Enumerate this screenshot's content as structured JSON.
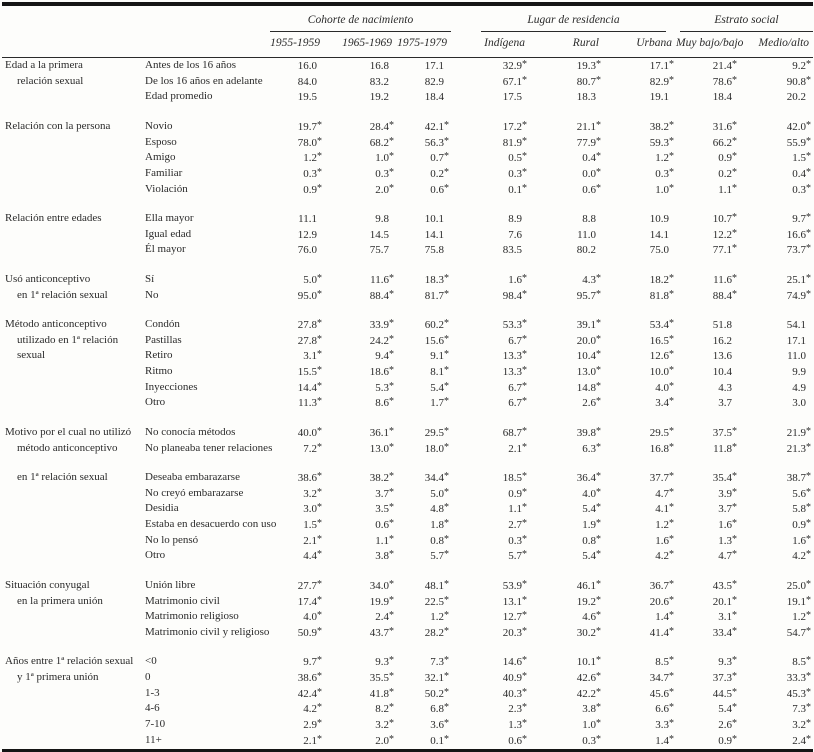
{
  "table": {
    "column_groups": [
      {
        "label": "Cohorte de nacimiento",
        "columns": [
          "1955-1959",
          "1965-1969",
          "1975-1979"
        ]
      },
      {
        "label": "Lugar de residencia",
        "columns": [
          "Indígena",
          "Rural",
          "Urbana"
        ]
      },
      {
        "label": "Estrato social",
        "columns": [
          "Muy bajo/bajo",
          "Medio/alto"
        ]
      }
    ],
    "footnote_marker": "*",
    "sections": [
      {
        "label_lines": [
          "Edad a la primera",
          "relación sexual"
        ],
        "rows": [
          {
            "label": "Antes de los 16 años",
            "values": [
              "16.0",
              "16.8",
              "17.1",
              "32.9*",
              "19.3*",
              "17.1*",
              "21.4*",
              "9.2*"
            ]
          },
          {
            "label": "De los 16 años en adelante",
            "values": [
              "84.0",
              "83.2",
              "82.9",
              "67.1*",
              "80.7*",
              "82.9*",
              "78.6*",
              "90.8*"
            ]
          },
          {
            "label": "Edad promedio",
            "values": [
              "19.5",
              "19.2",
              "18.4",
              "17.5",
              "18.3",
              "19.1",
              "18.4",
              "20.2"
            ]
          }
        ]
      },
      {
        "label_lines": [
          "Relación con la persona"
        ],
        "rows": [
          {
            "label": "Novio",
            "values": [
              "19.7*",
              "28.4*",
              "42.1*",
              "17.2*",
              "21.1*",
              "38.2*",
              "31.6*",
              "42.0*"
            ]
          },
          {
            "label": "Esposo",
            "values": [
              "78.0*",
              "68.2*",
              "56.3*",
              "81.9*",
              "77.9*",
              "59.3*",
              "66.2*",
              "55.9*"
            ]
          },
          {
            "label": "Amigo",
            "values": [
              "1.2*",
              "1.0*",
              "0.7*",
              "0.5*",
              "0.4*",
              "1.2*",
              "0.9*",
              "1.5*"
            ]
          },
          {
            "label": "Familiar",
            "values": [
              "0.3*",
              "0.3*",
              "0.2*",
              "0.3*",
              "0.0*",
              "0.3*",
              "0.2*",
              "0.4*"
            ]
          },
          {
            "label": "Violación",
            "values": [
              "0.9*",
              "2.0*",
              "0.6*",
              "0.1*",
              "0.6*",
              "1.0*",
              "1.1*",
              "0.3*"
            ]
          }
        ]
      },
      {
        "label_lines": [
          "Relación entre edades"
        ],
        "rows": [
          {
            "label": "Ella mayor",
            "values": [
              "11.1",
              "9.8",
              "10.1",
              "8.9",
              "8.8",
              "10.9",
              "10.7*",
              "9.7*"
            ]
          },
          {
            "label": "Igual edad",
            "values": [
              "12.9",
              "14.5",
              "14.1",
              "7.6",
              "11.0",
              "14.1",
              "12.2*",
              "16.6*"
            ]
          },
          {
            "label": "Él mayor",
            "values": [
              "76.0",
              "75.7",
              "75.8",
              "83.5",
              "80.2",
              "75.0",
              "77.1*",
              "73.7*"
            ]
          }
        ]
      },
      {
        "label_lines": [
          "Usó anticonceptivo",
          "en 1ª relación sexual"
        ],
        "rows": [
          {
            "label": "Sí",
            "values": [
              "5.0*",
              "11.6*",
              "18.3*",
              "1.6*",
              "4.3*",
              "18.2*",
              "11.6*",
              "25.1*"
            ]
          },
          {
            "label": "No",
            "values": [
              "95.0*",
              "88.4*",
              "81.7*",
              "98.4*",
              "95.7*",
              "81.8*",
              "88.4*",
              "74.9*"
            ]
          }
        ]
      },
      {
        "label_lines": [
          "Método anticonceptivo",
          "utilizado en 1ª relación",
          "sexual"
        ],
        "rows": [
          {
            "label": "Condón",
            "values": [
              "27.8*",
              "33.9*",
              "60.2*",
              "53.3*",
              "39.1*",
              "53.4*",
              "51.8",
              "54.1"
            ]
          },
          {
            "label": "Pastillas",
            "values": [
              "27.8*",
              "24.2*",
              "15.6*",
              "6.7*",
              "20.0*",
              "16.5*",
              "16.2",
              "17.1"
            ]
          },
          {
            "label": "Retiro",
            "values": [
              "3.1*",
              "9.4*",
              "9.1*",
              "13.3*",
              "10.4*",
              "12.6*",
              "13.6",
              "11.0"
            ]
          },
          {
            "label": "Ritmo",
            "values": [
              "15.5*",
              "18.6*",
              "8.1*",
              "13.3*",
              "13.0*",
              "10.0*",
              "10.4",
              "9.9"
            ]
          },
          {
            "label": "Inyecciones",
            "values": [
              "14.4*",
              "5.3*",
              "5.4*",
              "6.7*",
              "14.8*",
              "4.0*",
              "4.3",
              "4.9"
            ]
          },
          {
            "label": "Otro",
            "values": [
              "11.3*",
              "8.6*",
              "1.7*",
              "6.7*",
              "2.6*",
              "3.4*",
              "3.7",
              "3.0"
            ]
          }
        ]
      },
      {
        "label_lines": [
          "Motivo por el cual no utilizó",
          "método anticonceptivo"
        ],
        "rows": [
          {
            "label": "No conocía métodos",
            "values": [
              "40.0*",
              "36.1*",
              "29.5*",
              "68.7*",
              "39.8*",
              "29.5*",
              "37.5*",
              "21.9*"
            ]
          },
          {
            "label": "No planeaba tener relaciones",
            "values": [
              "7.2*",
              "13.0*",
              "18.0*",
              "2.1*",
              "6.3*",
              "16.8*",
              "11.8*",
              "21.3*"
            ]
          }
        ]
      },
      {
        "label_lines": [
          "en 1ª relación sexual"
        ],
        "indent_first": true,
        "rows": [
          {
            "label": "Deseaba embarazarse",
            "values": [
              "38.6*",
              "38.2*",
              "34.4*",
              "18.5*",
              "36.4*",
              "37.7*",
              "35.4*",
              "38.7*"
            ]
          },
          {
            "label": "No creyó embarazarse",
            "values": [
              "3.2*",
              "3.7*",
              "5.0*",
              "0.9*",
              "4.0*",
              "4.7*",
              "3.9*",
              "5.6*"
            ]
          },
          {
            "label": "Desidia",
            "values": [
              "3.0*",
              "3.5*",
              "4.8*",
              "1.1*",
              "5.4*",
              "4.1*",
              "3.7*",
              "5.8*"
            ]
          },
          {
            "label": "Estaba en desacuerdo con uso",
            "values": [
              "1.5*",
              "0.6*",
              "1.8*",
              "2.7*",
              "1.9*",
              "1.2*",
              "1.6*",
              "0.9*"
            ]
          },
          {
            "label": "No lo pensó",
            "values": [
              "2.1*",
              "1.1*",
              "0.8*",
              "0.3*",
              "0.8*",
              "1.6*",
              "1.3*",
              "1.6*"
            ]
          },
          {
            "label": "Otro",
            "values": [
              "4.4*",
              "3.8*",
              "5.7*",
              "5.7*",
              "5.4*",
              "4.2*",
              "4.7*",
              "4.2*"
            ]
          }
        ]
      },
      {
        "label_lines": [
          "Situación conyugal",
          "en la primera unión"
        ],
        "rows": [
          {
            "label": "Unión libre",
            "values": [
              "27.7*",
              "34.0*",
              "48.1*",
              "53.9*",
              "46.1*",
              "36.7*",
              "43.5*",
              "25.0*"
            ]
          },
          {
            "label": "Matrimonio civil",
            "values": [
              "17.4*",
              "19.9*",
              "22.5*",
              "13.1*",
              "19.2*",
              "20.6*",
              "20.1*",
              "19.1*"
            ]
          },
          {
            "label": "Matrimonio religioso",
            "values": [
              "4.0*",
              "2.4*",
              "1.2*",
              "12.7*",
              "4.6*",
              "1.4*",
              "3.1*",
              "1.2*"
            ]
          },
          {
            "label": "Matrimonio civil y religioso",
            "values": [
              "50.9*",
              "43.7*",
              "28.2*",
              "20.3*",
              "30.2*",
              "41.4*",
              "33.4*",
              "54.7*"
            ]
          }
        ]
      },
      {
        "label_lines": [
          "Años entre 1ª relación sexual",
          "y 1ª primera unión"
        ],
        "rows": [
          {
            "label": "<0",
            "values": [
              "9.7*",
              "9.3*",
              "7.3*",
              "14.6*",
              "10.1*",
              "8.5*",
              "9.3*",
              "8.5*"
            ]
          },
          {
            "label": "0",
            "values": [
              "38.6*",
              "35.5*",
              "32.1*",
              "40.9*",
              "42.6*",
              "34.7*",
              "37.3*",
              "33.3*"
            ]
          },
          {
            "label": "1-3",
            "values": [
              "42.4*",
              "41.8*",
              "50.2*",
              "40.3*",
              "42.2*",
              "45.6*",
              "44.5*",
              "45.3*"
            ]
          },
          {
            "label": "4-6",
            "values": [
              "4.2*",
              "8.2*",
              "6.8*",
              "2.3*",
              "3.8*",
              "6.6*",
              "5.4*",
              "7.3*"
            ]
          },
          {
            "label": "7-10",
            "values": [
              "2.9*",
              "3.2*",
              "3.6*",
              "1.3*",
              "1.0*",
              "3.3*",
              "2.6*",
              "3.2*"
            ]
          },
          {
            "label": "11+",
            "values": [
              "2.1*",
              "2.0*",
              "0.1*",
              "0.6*",
              "0.3*",
              "1.4*",
              "0.9*",
              "2.4*"
            ]
          }
        ]
      }
    ]
  }
}
